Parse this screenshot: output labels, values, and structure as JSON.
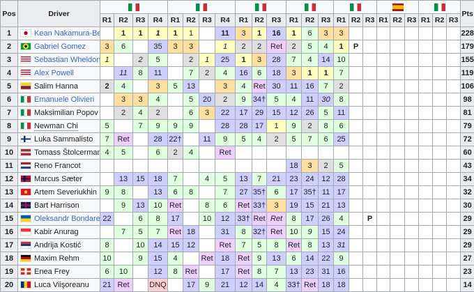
{
  "header": {
    "pos": "Pos",
    "driver": "Driver",
    "pts": "Pts",
    "groups": [
      {
        "flag": "italy",
        "rounds": [
          "R1",
          "R2",
          "R3",
          "R4"
        ]
      },
      {
        "flag": "italy",
        "rounds": [
          "R1",
          "R2",
          "R3",
          "R4"
        ]
      },
      {
        "flag": "italy",
        "rounds": [
          "R1",
          "R2",
          "R3"
        ]
      },
      {
        "flag": "italy",
        "rounds": [
          "R1",
          "R2",
          "R3"
        ]
      },
      {
        "flag": "italy",
        "rounds": [
          "R1",
          "R2",
          "R3"
        ]
      },
      {
        "flag": "spain",
        "rounds": [
          "R1",
          "R2",
          "R3"
        ]
      },
      {
        "flag": "italy",
        "rounds": [
          "R1",
          "R2",
          "R3"
        ]
      }
    ]
  },
  "legend_colors": {
    "y": "#ffffbf",
    "s": "#dfdfdf",
    "o": "#ffdf9f",
    "g": "#dfffdf",
    "b": "#cfcfff",
    "p": "#efcfff",
    "d": "#ffcfcf",
    "link": "#3366cc"
  },
  "rows": [
    {
      "pos": "1",
      "flag": "japan",
      "name": "Kean Nakamura-Berta",
      "link": true,
      "pts": "228",
      "cells": [
        "",
        "1~y~b",
        "1~y~b",
        "1~y~bi",
        "1~y~b",
        "1~y",
        "",
        "11~b~b",
        "3~o",
        "1~y~b",
        "16~b~b",
        "1~y~b",
        "6~g",
        "3~o",
        "3~o"
      ]
    },
    {
      "pos": "2",
      "flag": "brazil",
      "name": "Gabriel Gomez",
      "link": true,
      "pts": "179",
      "cells": [
        "3~o",
        "6~g",
        "",
        "35~b",
        "3~o",
        "3~o",
        "",
        "1~y~i",
        "2~s",
        "2~s",
        "Ret~p",
        "2~s",
        "5~g",
        "4~g",
        "1~y~b",
        "P~~b"
      ]
    },
    {
      "pos": "3",
      "flag": "usa",
      "name": "Sebastian Wheldon",
      "link": true,
      "pts": "155",
      "cells": [
        "1~y~i",
        "",
        "2~s~i",
        "5~g",
        "",
        "2~s",
        "1~y~i",
        "25~b",
        "1~y~b",
        "3~o",
        "28~b",
        "7~g",
        "4~g",
        "14~b",
        "10~g"
      ]
    },
    {
      "pos": "4",
      "flag": "usa",
      "name": "Alex Powell",
      "link": true,
      "pts": "119",
      "cells": [
        "",
        "11~b~i",
        "8~g",
        "11~b",
        "",
        "7~g",
        "2~s",
        "4~g",
        "16~b",
        "6~g",
        "18~b",
        "3~o",
        "1~y~b",
        "1~y~b",
        "7~g"
      ]
    },
    {
      "pos": "5",
      "flag": "colombia",
      "name": "Salim Hanna",
      "link": false,
      "pts": "106",
      "cells": [
        "2~s~b",
        "4~g",
        "",
        "3~o",
        "5~g",
        "13~b",
        "",
        "3~o",
        "4~g",
        "Ret~p",
        "30~b",
        "11~b",
        "16~b",
        "7~g",
        "2~s"
      ]
    },
    {
      "pos": "6",
      "flag": "italy",
      "name": "Emanuele Olivieri",
      "link": true,
      "pts": "98",
      "cells": [
        "",
        "3~o",
        "3~o",
        "4~g",
        "",
        "5~g",
        "20~b",
        "2~s",
        "9~g",
        "34†~b",
        "5~g",
        "4~g",
        "11~b",
        "30~b~i",
        "8~g"
      ]
    },
    {
      "pos": "7",
      "flag": "italy",
      "name": "Maksimilian Popov",
      "link": false,
      "pts": "81",
      "cells": [
        "",
        "2~s",
        "4~g",
        "2~s",
        "",
        "6~g",
        "3~o",
        "22~b",
        "17~b",
        "29~b",
        "15~b",
        "12~b",
        "26~b",
        "5~g",
        "11~b"
      ]
    },
    {
      "pos": "8",
      "flag": "italy",
      "name": "Newman Chi",
      "link": false,
      "pts": "79",
      "cells": [
        "5~g",
        "",
        "7~g",
        "9~g",
        "9~g",
        "9~g",
        "",
        "28~b",
        "28~b",
        "17~b",
        "1~y",
        "9~g",
        "2~s",
        "8~g",
        "6~g"
      ]
    },
    {
      "pos": "9",
      "flag": "finland",
      "name": "Luka Sammalisto",
      "link": false,
      "pts": "72",
      "cells": [
        "7~g",
        "Ret~p",
        "",
        "28~b",
        "22†~b",
        "",
        "11~b",
        "9~g",
        "5~g",
        "4~g",
        "2~s",
        "5~g",
        "7~g",
        "6~g",
        "25~b"
      ]
    },
    {
      "pos": "10",
      "flag": "latvia",
      "name": "Tomass Štolcermanis",
      "link": false,
      "pts": "60",
      "cells": [
        "4~g",
        "5~g",
        "",
        "6~g",
        "2~s",
        "4~g",
        "",
        "Ret~p"
      ]
    },
    {
      "pos": "11",
      "flag": "netherlands",
      "name": "Reno Francot",
      "link": false,
      "pts": "43",
      "cells": [
        "",
        "",
        "",
        "",
        "",
        "",
        "",
        "",
        "",
        "",
        "",
        "18~b",
        "3~o",
        "2~s",
        "5~g"
      ]
    },
    {
      "pos": "12",
      "flag": "norway",
      "name": "Marcus Sæter",
      "link": false,
      "pts": "34",
      "cells": [
        "",
        "13~b",
        "15~b",
        "18~b",
        "7~g",
        "",
        "4~g",
        "5~g",
        "13~b",
        "7~g",
        "21~b",
        "23~b",
        "24~b",
        "12~b",
        "28~b"
      ]
    },
    {
      "pos": "13",
      "flag": "kyrgyzstan",
      "name": "Artem Severiukhin",
      "link": false,
      "pts": "32",
      "cells": [
        "9~g",
        "8~g",
        "",
        "13~b",
        "6~g",
        "8~g",
        "",
        "7~g",
        "27~b",
        "35†~b",
        "6~g",
        "17~b",
        "35†~b",
        "11~b",
        "17~b"
      ]
    },
    {
      "pos": "14",
      "flag": "uk",
      "name": "Bart Harrison",
      "link": false,
      "pts": "30",
      "cells": [
        "",
        "9~g",
        "13~b",
        "10~g",
        "Ret~p",
        "",
        "8~g",
        "6~g",
        "Ret~p",
        "33†~b",
        "3~o",
        "19~b",
        "15~b",
        "21~b",
        "13~b"
      ]
    },
    {
      "pos": "15",
      "flag": "ukraine",
      "name": "Oleksandr Bondarev",
      "link": true,
      "pts": "29",
      "cells": [
        "22~b",
        "",
        "6~g",
        "8~g",
        "17~b",
        "",
        "10~g",
        "12~b",
        "33†~b",
        "Ret~p",
        "Ret~p~i",
        "8~g",
        "17~b",
        "26~b",
        "4~g",
        "",
        "P~~b"
      ]
    },
    {
      "pos": "16",
      "flag": "singapore",
      "name": "Kabir Anurag",
      "link": false,
      "pts": "29",
      "cells": [
        "",
        "7~g",
        "5~g",
        "7~g",
        "Ret~p",
        "18~b",
        "",
        "31~b",
        "8~g",
        "32†~b",
        "Ret~p",
        "10~g",
        "9~g~i",
        "15~b",
        "24~b"
      ]
    },
    {
      "pos": "17",
      "flag": "serbia",
      "name": "Andrija Kostić",
      "link": false,
      "pts": "29",
      "cells": [
        "8~g",
        "",
        "10~g",
        "14~b",
        "15~b",
        "12~b",
        "",
        "Ret~p",
        "7~g",
        "5~g",
        "8~g",
        "Ret~p",
        "8~g",
        "13~b",
        "31~b~i"
      ]
    },
    {
      "pos": "18",
      "flag": "germany",
      "name": "Maxim Rehm",
      "link": false,
      "pts": "27",
      "cells": [
        "10~g",
        "",
        "9~g",
        "15~b",
        "4~g",
        "",
        "Ret~p",
        "18~b",
        "Ret~p",
        "9~g",
        "13~b",
        "6~g",
        "14~b",
        "22~b",
        "9~g"
      ]
    },
    {
      "pos": "19",
      "flag": "switzerland",
      "name": "Enea Frey",
      "link": false,
      "pts": "23",
      "cells": [
        "6~g",
        "10~g",
        "",
        "12~b",
        "8~g",
        "Ret~p",
        "",
        "17~b",
        "Ret~p",
        "8~g",
        "7~g",
        "13~b",
        "23~b",
        "31~b",
        "16~b"
      ]
    },
    {
      "pos": "20",
      "flag": "romania",
      "name": "Luca Viişoreanu",
      "link": false,
      "pts": "14",
      "cells": [
        "21~b",
        "Ret~p",
        "",
        "DNQ~d",
        "",
        "17~b",
        "9~g",
        "21~b",
        "12~b",
        "14~b",
        "4~g",
        "33†~b",
        "Ret~p",
        "18~b",
        "18~b"
      ]
    }
  ]
}
